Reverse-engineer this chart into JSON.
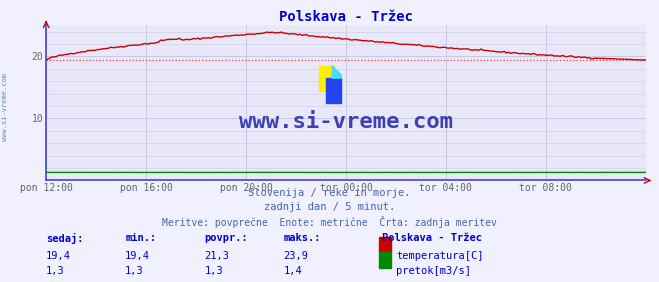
{
  "title": "Polskava - Tržec",
  "title_color": "#0000cc",
  "bg_color": "#f0f0ff",
  "plot_bg_color": "#e8e8f8",
  "grid_color": "#c8c8e8",
  "border_color": "#4444cc",
  "xlabel": "",
  "ylabel": "",
  "xlim": [
    0,
    288
  ],
  "ylim": [
    0,
    25
  ],
  "yticks": [
    10,
    20
  ],
  "xtick_labels": [
    "pon 12:00",
    "pon 16:00",
    "pon 20:00",
    "tor 00:00",
    "tor 04:00",
    "tor 08:00"
  ],
  "xtick_positions": [
    0,
    48,
    96,
    144,
    192,
    240
  ],
  "temp_color": "#cc0000",
  "flow_color": "#008800",
  "avg_line_color": "#ee4444",
  "avg_temp": 19.4,
  "avg_flow": 1.3,
  "temp_min": 19.4,
  "temp_max": 23.9,
  "temp_povpr": 21.3,
  "temp_sedaj": 19.4,
  "flow_min": 1.3,
  "flow_max": 1.4,
  "flow_povpr": 1.3,
  "flow_sedaj": 1.3,
  "watermark": "www.si-vreme.com",
  "watermark_color": "#2222aa",
  "side_text": "www.si-vreme.com",
  "legend_title": "Polskava - Tržec",
  "legend_temp_label": "temperatura[C]",
  "legend_flow_label": "pretok[m3/s]",
  "footer_line1": "Slovenija / reke in morje.",
  "footer_line2": "zadnji dan / 5 minut.",
  "footer_line3": "Meritve: povprečne  Enote: metrične  Črta: zadnja meritev",
  "footer_color": "#4466aa",
  "table_header_color": "#0000cc",
  "table_values_color": "#0000cc",
  "n_points": 289
}
